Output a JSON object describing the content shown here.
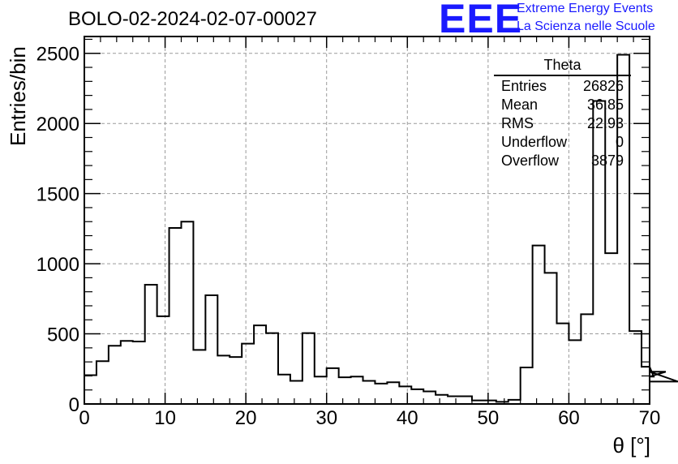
{
  "header": {
    "title": "BOLO-02-2024-02-07-00027",
    "logo_text": "EEE",
    "org_line1": "Extreme Energy Events",
    "org_line2": "La Scienza nelle Scuole"
  },
  "stats_box": {
    "name": "Theta",
    "rows": [
      {
        "label": "Entries",
        "value": "26826"
      },
      {
        "label": "Mean",
        "value": "36.85"
      },
      {
        "label": "RMS",
        "value": "22.93"
      },
      {
        "label": "Underflow",
        "value": "0"
      },
      {
        "label": "Overflow",
        "value": "3879"
      }
    ]
  },
  "colors": {
    "logo": "#1a1aff",
    "line": "#000000",
    "grid": "#9a9a9a"
  },
  "chart_data": {
    "type": "histogram",
    "title": "BOLO-02-2024-02-07-00027",
    "xlabel": "θ [°]",
    "ylabel": "Entries/bin",
    "xlim": [
      0,
      70
    ],
    "ylim": [
      0,
      2620
    ],
    "grid": true,
    "x_ticks": [
      0,
      10,
      20,
      30,
      40,
      50,
      60,
      70
    ],
    "y_ticks": [
      0,
      500,
      1000,
      1500,
      2000,
      2500
    ],
    "bin_width": 1.5,
    "bin_edges_start": 0,
    "values": [
      205,
      305,
      415,
      450,
      445,
      850,
      625,
      1255,
      1300,
      385,
      775,
      345,
      335,
      430,
      560,
      505,
      210,
      165,
      505,
      195,
      255,
      190,
      195,
      165,
      145,
      155,
      125,
      105,
      90,
      65,
      55,
      55,
      25,
      25,
      15,
      30,
      260,
      1130,
      935,
      575,
      455,
      640,
      2160,
      1075,
      2490,
      520,
      265,
      195,
      230,
      160
    ]
  }
}
